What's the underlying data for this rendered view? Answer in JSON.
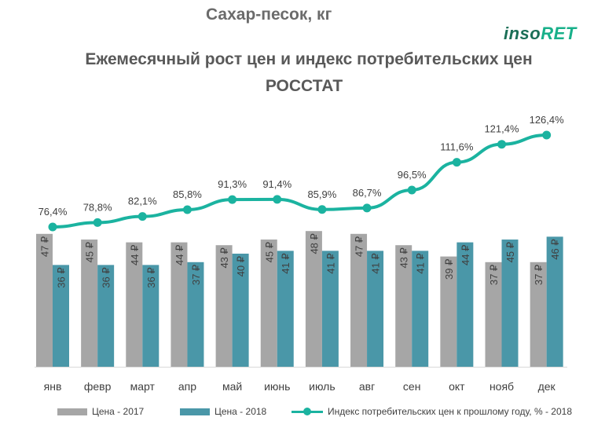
{
  "header": {
    "subtitle": "Сахар-песок, кг",
    "title_line1": "Ежемесячный рост цен и индекс потребительских цен",
    "title_line2": "РОССТАТ",
    "logo_part1": "inso",
    "logo_part2": "RET"
  },
  "colors": {
    "price_2017": "#a6a6a6",
    "price_2018": "#4a97a8",
    "index_line": "#1bb3a0"
  },
  "chart_data": {
    "type": "bar",
    "categories": [
      "янв",
      "февр",
      "март",
      "апр",
      "май",
      "июнь",
      "июль",
      "авг",
      "сен",
      "окт",
      "нояб",
      "дек"
    ],
    "series": [
      {
        "name": "Цена  - 2017",
        "type": "bar",
        "values": [
          47,
          45,
          44,
          44,
          43,
          45,
          48,
          47,
          43,
          39,
          37,
          37
        ],
        "labels": [
          "47 ₽",
          "45 ₽",
          "44 ₽",
          "44 ₽",
          "43 ₽",
          "45 ₽",
          "48 ₽",
          "47 ₽",
          "43 ₽",
          "39 ₽",
          "37 ₽",
          "37 ₽"
        ]
      },
      {
        "name": "Цена  - 2018",
        "type": "bar",
        "values": [
          36,
          36,
          36,
          37,
          40,
          41,
          41,
          41,
          41,
          44,
          45,
          46
        ],
        "labels": [
          "36 ₽",
          "36 ₽",
          "36 ₽",
          "37 ₽",
          "40 ₽",
          "41 ₽",
          "41 ₽",
          "41 ₽",
          "41 ₽",
          "44 ₽",
          "45 ₽",
          "46 ₽"
        ]
      },
      {
        "name": "Индекс потребительских цен к прошлому году, % - 2018",
        "type": "line",
        "values": [
          76.4,
          78.8,
          82.1,
          85.8,
          91.3,
          91.4,
          85.9,
          86.7,
          96.5,
          111.6,
          121.4,
          126.4
        ],
        "labels": [
          "76,4%",
          "78,8%",
          "82,1%",
          "85,8%",
          "91,3%",
          "91,4%",
          "85,9%",
          "86,7%",
          "96,5%",
          "111,6%",
          "121,4%",
          "126,4%"
        ]
      }
    ],
    "legend_position": "bottom",
    "grid": false
  }
}
